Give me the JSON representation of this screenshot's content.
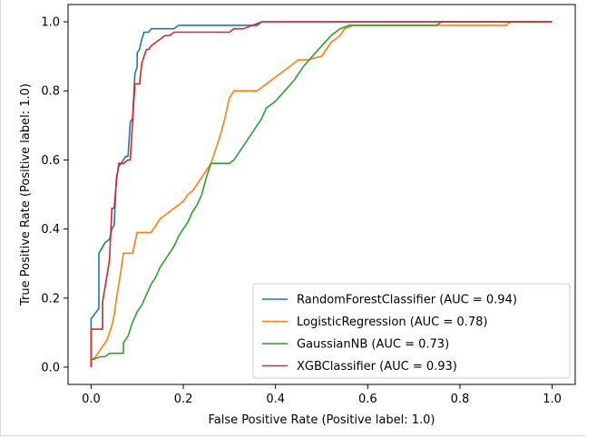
{
  "chart_data": {
    "type": "line",
    "title": "",
    "xlabel": "False Positive Rate (Positive label: 1.0)",
    "ylabel": "True Positive Rate (Positive label: 1.0)",
    "xlim": [
      -0.05,
      1.05
    ],
    "ylim": [
      -0.05,
      1.05
    ],
    "xticks": [
      0.0,
      0.2,
      0.4,
      0.6,
      0.8,
      1.0
    ],
    "xtick_labels": [
      "0.0",
      "0.2",
      "0.4",
      "0.6",
      "0.8",
      "1.0"
    ],
    "yticks": [
      0.0,
      0.2,
      0.4,
      0.6,
      0.8,
      1.0
    ],
    "ytick_labels": [
      "0.0",
      "0.2",
      "0.4",
      "0.6",
      "0.8",
      "1.0"
    ],
    "grid": false,
    "legend_position": "lower-right",
    "series": [
      {
        "name": "RandomForestClassifier (AUC = 0.94)",
        "color": "#1f77b4",
        "x": [
          0.0,
          0.0,
          0.017,
          0.017,
          0.03,
          0.04,
          0.045,
          0.05,
          0.055,
          0.06,
          0.065,
          0.07,
          0.075,
          0.08,
          0.085,
          0.09,
          0.095,
          0.1,
          0.1,
          0.105,
          0.11,
          0.115,
          0.12,
          0.125,
          0.13,
          0.15,
          0.17,
          0.18,
          0.19,
          0.2,
          0.35,
          0.37,
          0.4,
          1.0
        ],
        "y": [
          0.0,
          0.14,
          0.17,
          0.33,
          0.36,
          0.37,
          0.4,
          0.41,
          0.55,
          0.58,
          0.59,
          0.6,
          0.61,
          0.61,
          0.71,
          0.72,
          0.85,
          0.87,
          0.91,
          0.92,
          0.95,
          0.97,
          0.97,
          0.97,
          0.98,
          0.98,
          0.98,
          0.98,
          0.99,
          0.99,
          0.99,
          1.0,
          1.0,
          1.0
        ]
      },
      {
        "name": "LogisticRegression (AUC = 0.78)",
        "color": "#ff7f0e",
        "x": [
          0.0,
          0.0,
          0.01,
          0.015,
          0.02,
          0.025,
          0.03,
          0.035,
          0.04,
          0.045,
          0.05,
          0.055,
          0.06,
          0.065,
          0.07,
          0.08,
          0.09,
          0.095,
          0.1,
          0.13,
          0.14,
          0.15,
          0.16,
          0.17,
          0.18,
          0.19,
          0.2,
          0.21,
          0.22,
          0.23,
          0.24,
          0.25,
          0.26,
          0.27,
          0.28,
          0.29,
          0.3,
          0.31,
          0.32,
          0.33,
          0.34,
          0.35,
          0.36,
          0.38,
          0.4,
          0.45,
          0.47,
          0.5,
          0.51,
          0.52,
          0.53,
          0.54,
          0.55,
          0.57,
          0.6,
          0.9,
          0.91,
          1.0
        ],
        "y": [
          0.0,
          0.02,
          0.03,
          0.04,
          0.05,
          0.06,
          0.07,
          0.08,
          0.1,
          0.12,
          0.15,
          0.2,
          0.24,
          0.28,
          0.33,
          0.33,
          0.33,
          0.36,
          0.39,
          0.39,
          0.41,
          0.43,
          0.44,
          0.45,
          0.46,
          0.47,
          0.48,
          0.5,
          0.51,
          0.53,
          0.55,
          0.57,
          0.59,
          0.63,
          0.67,
          0.72,
          0.78,
          0.8,
          0.8,
          0.8,
          0.8,
          0.8,
          0.8,
          0.82,
          0.84,
          0.89,
          0.89,
          0.9,
          0.92,
          0.94,
          0.95,
          0.96,
          0.98,
          0.99,
          0.99,
          0.99,
          1.0,
          1.0
        ]
      },
      {
        "name": "GaussianNB (AUC = 0.73)",
        "color": "#2ca02c",
        "x": [
          0.0,
          0.0,
          0.02,
          0.03,
          0.04,
          0.05,
          0.07,
          0.07,
          0.08,
          0.09,
          0.1,
          0.11,
          0.12,
          0.13,
          0.14,
          0.15,
          0.16,
          0.17,
          0.18,
          0.19,
          0.2,
          0.21,
          0.22,
          0.23,
          0.24,
          0.25,
          0.26,
          0.27,
          0.28,
          0.29,
          0.3,
          0.31,
          0.32,
          0.33,
          0.34,
          0.35,
          0.36,
          0.37,
          0.38,
          0.4,
          0.42,
          0.44,
          0.46,
          0.48,
          0.5,
          0.52,
          0.54,
          0.56,
          0.58,
          0.6,
          0.75,
          0.76,
          1.0
        ],
        "y": [
          0.0,
          0.02,
          0.03,
          0.03,
          0.04,
          0.04,
          0.04,
          0.07,
          0.09,
          0.13,
          0.16,
          0.18,
          0.21,
          0.24,
          0.26,
          0.29,
          0.31,
          0.33,
          0.35,
          0.38,
          0.4,
          0.42,
          0.45,
          0.47,
          0.5,
          0.55,
          0.59,
          0.59,
          0.59,
          0.59,
          0.59,
          0.6,
          0.62,
          0.64,
          0.66,
          0.68,
          0.7,
          0.72,
          0.75,
          0.77,
          0.8,
          0.83,
          0.87,
          0.9,
          0.93,
          0.96,
          0.98,
          0.99,
          0.99,
          0.99,
          0.99,
          1.0,
          1.0
        ]
      },
      {
        "name": "XGBClassifier (AUC = 0.93)",
        "color": "#d62728",
        "x": [
          0.0,
          0.0,
          0.025,
          0.025,
          0.03,
          0.035,
          0.04,
          0.045,
          0.05,
          0.055,
          0.06,
          0.07,
          0.08,
          0.085,
          0.09,
          0.095,
          0.1,
          0.105,
          0.11,
          0.115,
          0.12,
          0.125,
          0.13,
          0.14,
          0.15,
          0.16,
          0.17,
          0.18,
          0.19,
          0.2,
          0.3,
          0.31,
          0.33,
          0.35,
          0.36,
          0.37,
          0.38,
          0.39,
          1.0
        ],
        "y": [
          0.0,
          0.11,
          0.11,
          0.19,
          0.23,
          0.27,
          0.31,
          0.46,
          0.46,
          0.54,
          0.59,
          0.59,
          0.6,
          0.6,
          0.71,
          0.82,
          0.82,
          0.82,
          0.88,
          0.9,
          0.92,
          0.92,
          0.93,
          0.94,
          0.95,
          0.96,
          0.96,
          0.97,
          0.97,
          0.97,
          0.97,
          0.98,
          0.98,
          0.99,
          0.99,
          1.0,
          1.0,
          1.0,
          1.0
        ]
      }
    ]
  }
}
